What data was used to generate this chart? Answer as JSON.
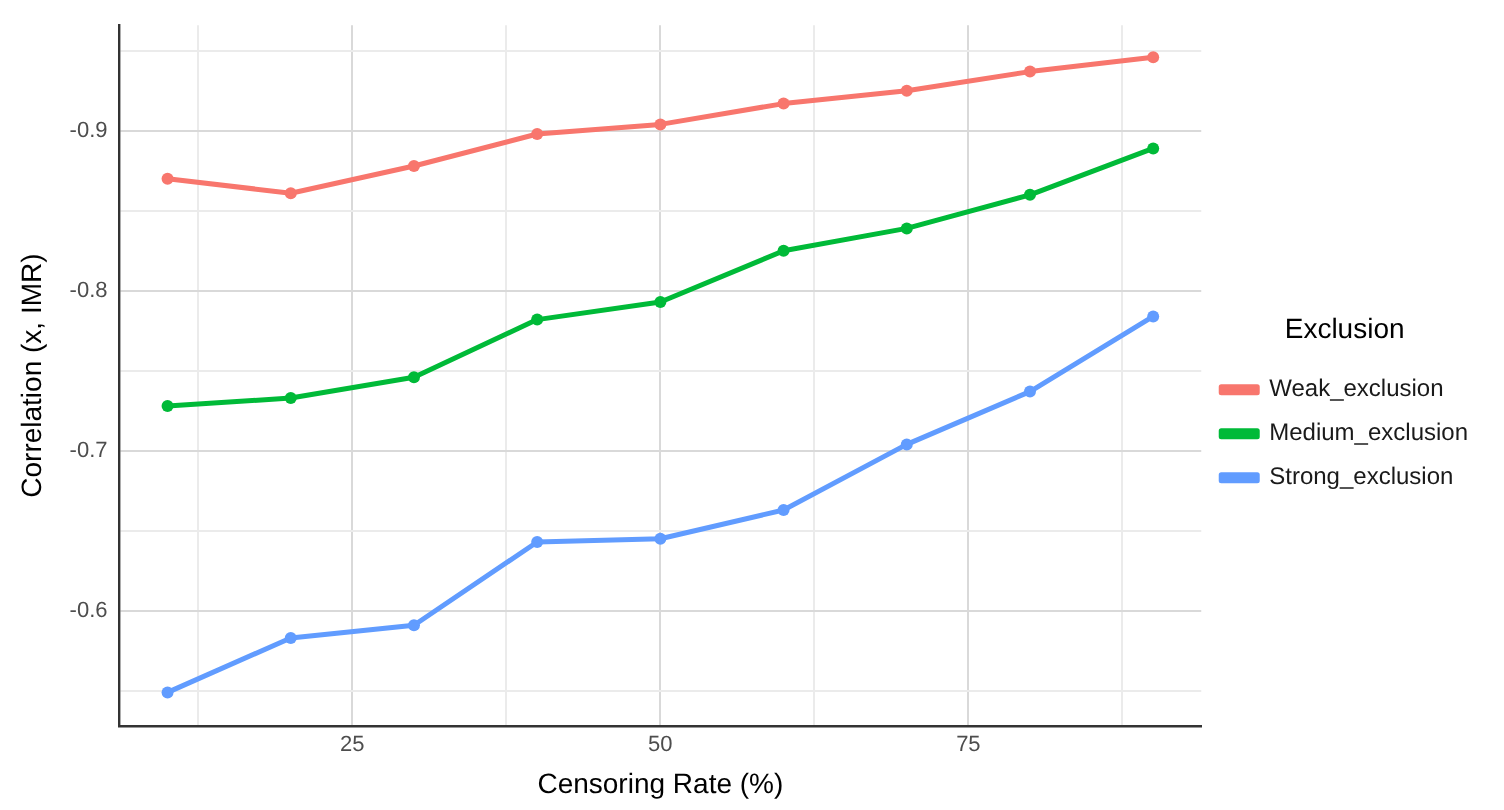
{
  "chart_data": {
    "type": "line",
    "xlabel": "Censoring Rate (%)",
    "ylabel": "Correlation (x, IMR)",
    "legend_title": "Exclusion",
    "legend": "right",
    "grid": true,
    "marker": "circle",
    "line_style": "solid",
    "x": [
      10,
      20,
      30,
      40,
      50,
      60,
      70,
      80,
      90
    ],
    "xlim": [
      6.1,
      93.9
    ],
    "xticks": [
      {
        "value": 12.5,
        "label": null
      },
      25,
      {
        "value": 37.5,
        "label": null
      },
      50,
      {
        "value": 62.5,
        "label": null
      },
      75,
      {
        "value": 87.5,
        "label": null
      }
    ],
    "ylim": [
      -0.528,
      -0.966
    ],
    "yticks": [
      {
        "value": -0.55,
        "label": null
      },
      -0.6,
      {
        "value": -0.65,
        "label": null
      },
      -0.7,
      {
        "value": -0.75,
        "label": null
      },
      -0.8,
      {
        "value": -0.85,
        "label": null
      },
      -0.9,
      {
        "value": -0.95,
        "label": null
      }
    ],
    "series": [
      {
        "name": "Weak_exclusion",
        "color": "#f8766d",
        "values": [
          -0.87,
          -0.861,
          -0.878,
          -0.898,
          -0.904,
          -0.917,
          -0.925,
          -0.937,
          -0.946
        ]
      },
      {
        "name": "Medium_exclusion",
        "color": "#00ba38",
        "values": [
          -0.728,
          -0.733,
          -0.746,
          -0.782,
          -0.793,
          -0.825,
          -0.839,
          -0.86,
          -0.889
        ]
      },
      {
        "name": "Strong_exclusion",
        "color": "#619cff",
        "values": [
          -0.549,
          -0.583,
          -0.591,
          -0.643,
          -0.645,
          -0.663,
          -0.704,
          -0.737,
          -0.784
        ]
      }
    ]
  }
}
